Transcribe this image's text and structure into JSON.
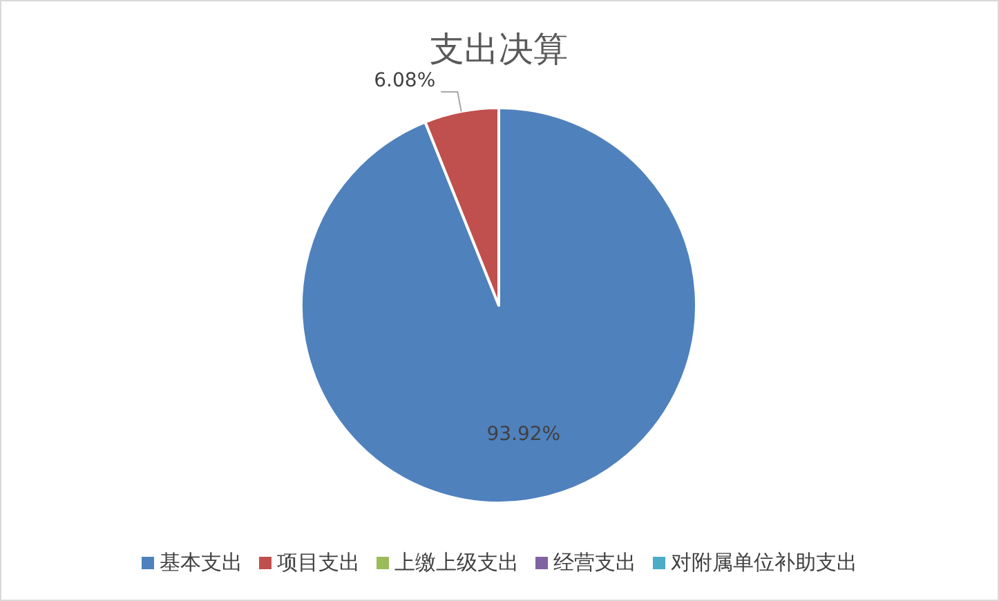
{
  "chart_data": {
    "type": "pie",
    "title": "支出决算",
    "categories": [
      "基本支出",
      "项目支出",
      "上缴上级支出",
      "经营支出",
      "对附属单位补助支出"
    ],
    "values": [
      93.92,
      6.08,
      0,
      0,
      0
    ],
    "colors": [
      "#4f81bd",
      "#c0504d",
      "#9bbb59",
      "#8064a2",
      "#4bacc6"
    ],
    "value_labels": [
      "93.92%",
      "6.08%",
      null,
      null,
      null
    ],
    "legend": "bottom"
  }
}
